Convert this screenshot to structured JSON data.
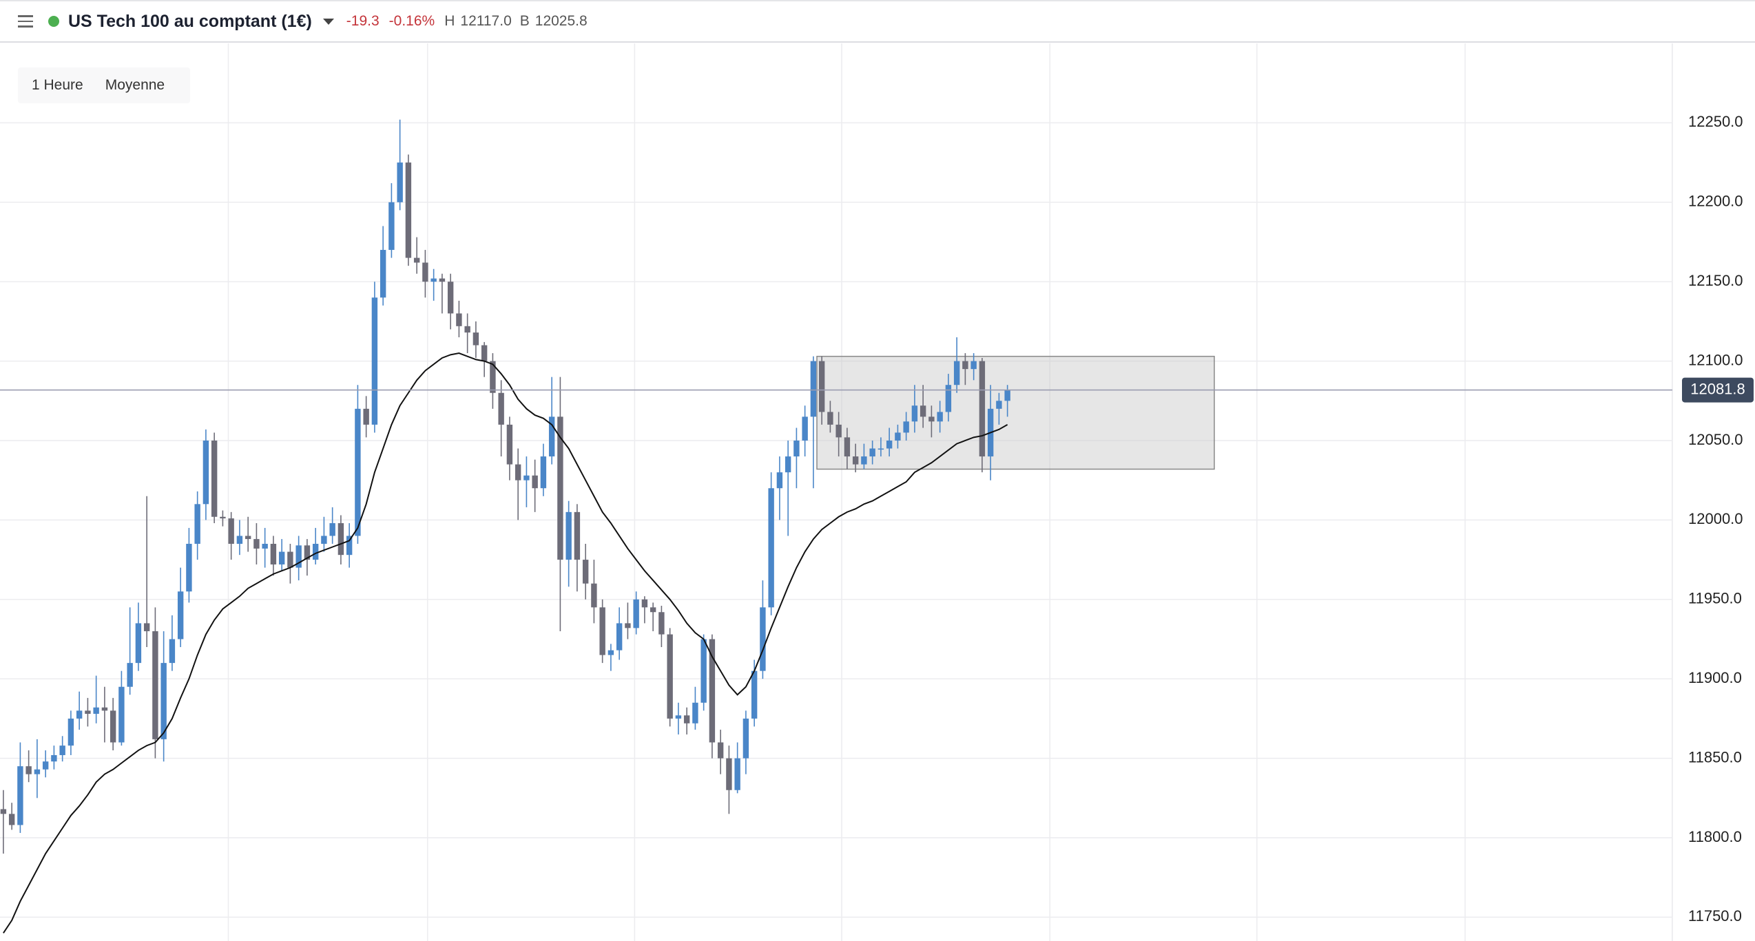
{
  "header": {
    "title": "US Tech 100 au comptant (1€)",
    "change": "-19.3",
    "change_pct": "-0.16%",
    "high_label": "H",
    "high": "12117.0",
    "bid_label": "B",
    "bid": "12025.8"
  },
  "toolbar": {
    "interval": "1 Heure",
    "indicator": "Moyenne"
  },
  "chart_data": {
    "type": "candlestick",
    "ohlc": [
      [
        11818,
        11830,
        11790,
        11815
      ],
      [
        11815,
        11822,
        11805,
        11808
      ],
      [
        11808,
        11860,
        11803,
        11845
      ],
      [
        11845,
        11855,
        11835,
        11840
      ],
      [
        11840,
        11862,
        11825,
        11843
      ],
      [
        11843,
        11855,
        11838,
        11848
      ],
      [
        11848,
        11858,
        11843,
        11852
      ],
      [
        11852,
        11864,
        11848,
        11858
      ],
      [
        11858,
        11880,
        11852,
        11875
      ],
      [
        11875,
        11892,
        11868,
        11880
      ],
      [
        11880,
        11888,
        11870,
        11878
      ],
      [
        11878,
        11902,
        11872,
        11882
      ],
      [
        11882,
        11895,
        11860,
        11880
      ],
      [
        11880,
        11888,
        11855,
        11860
      ],
      [
        11860,
        11905,
        11858,
        11895
      ],
      [
        11895,
        11945,
        11890,
        11910
      ],
      [
        11910,
        11948,
        11905,
        11935
      ],
      [
        11935,
        12015,
        11920,
        11930
      ],
      [
        11930,
        11945,
        11850,
        11862
      ],
      [
        11862,
        11930,
        11848,
        11910
      ],
      [
        11910,
        11940,
        11905,
        11925
      ],
      [
        11925,
        11970,
        11920,
        11955
      ],
      [
        11955,
        11995,
        11948,
        11985
      ],
      [
        11985,
        12018,
        11975,
        12010
      ],
      [
        12010,
        12057,
        12000,
        12050
      ],
      [
        12050,
        12055,
        11998,
        12002
      ],
      [
        12002,
        12006,
        11996,
        12001
      ],
      [
        12001,
        12005,
        11975,
        11985
      ],
      [
        11985,
        12000,
        11978,
        11990
      ],
      [
        11990,
        12002,
        11980,
        11988
      ],
      [
        11988,
        11998,
        11972,
        11982
      ],
      [
        11982,
        11995,
        11970,
        11985
      ],
      [
        11985,
        11990,
        11965,
        11972
      ],
      [
        11972,
        11988,
        11968,
        11980
      ],
      [
        11980,
        11985,
        11960,
        11970
      ],
      [
        11970,
        11990,
        11962,
        11984
      ],
      [
        11984,
        11988,
        11965,
        11975
      ],
      [
        11975,
        11995,
        11972,
        11985
      ],
      [
        11985,
        12002,
        11980,
        11990
      ],
      [
        11990,
        12008,
        11985,
        11998
      ],
      [
        11998,
        12003,
        11972,
        11978
      ],
      [
        11978,
        11998,
        11970,
        11990
      ],
      [
        11990,
        12085,
        11985,
        12070
      ],
      [
        12070,
        12078,
        12052,
        12060
      ],
      [
        12060,
        12150,
        12055,
        12140
      ],
      [
        12140,
        12185,
        12135,
        12170
      ],
      [
        12170,
        12212,
        12165,
        12200
      ],
      [
        12200,
        12252,
        12195,
        12225
      ],
      [
        12225,
        12230,
        12160,
        12165
      ],
      [
        12165,
        12178,
        12155,
        12162
      ],
      [
        12162,
        12170,
        12140,
        12150
      ],
      [
        12150,
        12158,
        12138,
        12152
      ],
      [
        12152,
        12155,
        12130,
        12150
      ],
      [
        12150,
        12155,
        12120,
        12130
      ],
      [
        12130,
        12138,
        12115,
        12122
      ],
      [
        12122,
        12130,
        12105,
        12118
      ],
      [
        12118,
        12125,
        12102,
        12110
      ],
      [
        12110,
        12112,
        12090,
        12100
      ],
      [
        12100,
        12105,
        12070,
        12080
      ],
      [
        12080,
        12088,
        12040,
        12060
      ],
      [
        12060,
        12065,
        12025,
        12035
      ],
      [
        12035,
        12045,
        12000,
        12025
      ],
      [
        12025,
        12040,
        12008,
        12028
      ],
      [
        12028,
        12038,
        12005,
        12020
      ],
      [
        12020,
        12048,
        12015,
        12040
      ],
      [
        12040,
        12090,
        12035,
        12065
      ],
      [
        12065,
        12090,
        11930,
        11975
      ],
      [
        11975,
        12012,
        11958,
        12005
      ],
      [
        12005,
        12010,
        11955,
        11975
      ],
      [
        11975,
        11985,
        11950,
        11960
      ],
      [
        11960,
        11975,
        11935,
        11945
      ],
      [
        11945,
        11950,
        11910,
        11915
      ],
      [
        11915,
        11922,
        11905,
        11918
      ],
      [
        11918,
        11945,
        11912,
        11935
      ],
      [
        11935,
        11948,
        11925,
        11932
      ],
      [
        11932,
        11955,
        11928,
        11950
      ],
      [
        11950,
        11952,
        11935,
        11945
      ],
      [
        11945,
        11948,
        11930,
        11942
      ],
      [
        11942,
        11946,
        11920,
        11928
      ],
      [
        11928,
        11932,
        11870,
        11875
      ],
      [
        11875,
        11885,
        11865,
        11877
      ],
      [
        11877,
        11882,
        11865,
        11872
      ],
      [
        11872,
        11895,
        11868,
        11885
      ],
      [
        11885,
        11928,
        11880,
        11925
      ],
      [
        11925,
        11928,
        11850,
        11860
      ],
      [
        11860,
        11868,
        11840,
        11850
      ],
      [
        11850,
        11858,
        11815,
        11830
      ],
      [
        11830,
        11860,
        11828,
        11850
      ],
      [
        11850,
        11880,
        11840,
        11875
      ],
      [
        11875,
        11912,
        11870,
        11905
      ],
      [
        11905,
        11962,
        11900,
        11945
      ],
      [
        11945,
        12030,
        11940,
        12020
      ],
      [
        12020,
        12040,
        12000,
        12030
      ],
      [
        12030,
        12050,
        11990,
        12040
      ],
      [
        12040,
        12058,
        12020,
        12050
      ],
      [
        12050,
        12072,
        12040,
        12065
      ],
      [
        12065,
        12103,
        12020,
        12100
      ],
      [
        12100,
        12103,
        12060,
        12068
      ],
      [
        12068,
        12075,
        12055,
        12060
      ],
      [
        12060,
        12068,
        12040,
        12052
      ],
      [
        12052,
        12058,
        12032,
        12040
      ],
      [
        12040,
        12048,
        12030,
        12035
      ],
      [
        12035,
        12048,
        12032,
        12040
      ],
      [
        12040,
        12050,
        12035,
        12045
      ],
      [
        12045,
        12052,
        12040,
        12045
      ],
      [
        12045,
        12058,
        12040,
        12050
      ],
      [
        12050,
        12060,
        12045,
        12055
      ],
      [
        12055,
        12068,
        12050,
        12062
      ],
      [
        12062,
        12085,
        12055,
        12072
      ],
      [
        12072,
        12085,
        12058,
        12065
      ],
      [
        12065,
        12072,
        12052,
        12062
      ],
      [
        12062,
        12075,
        12055,
        12068
      ],
      [
        12068,
        12092,
        12062,
        12085
      ],
      [
        12085,
        12115,
        12080,
        12100
      ],
      [
        12100,
        12105,
        12085,
        12095
      ],
      [
        12095,
        12105,
        12088,
        12100
      ],
      [
        12100,
        12102,
        12030,
        12040
      ],
      [
        12040,
        12085,
        12025,
        12070
      ],
      [
        12070,
        12080,
        12060,
        12075
      ],
      [
        12075,
        12085,
        12065,
        12081.8
      ]
    ],
    "colors": {
      "up": "#4a86c8",
      "down": "#6d6c78"
    },
    "moving_average": {
      "color": "#111111",
      "values": [
        11740,
        11748,
        11760,
        11770,
        11780,
        11790,
        11798,
        11806,
        11814,
        11820,
        11827,
        11835,
        11840,
        11843,
        11847,
        11851,
        11855,
        11858,
        11860,
        11866,
        11875,
        11888,
        11900,
        11915,
        11928,
        11937,
        11944,
        11948,
        11952,
        11957,
        11960,
        11963,
        11966,
        11968,
        11970,
        11973,
        11976,
        11979,
        11981,
        11983,
        11985,
        11987,
        11995,
        12010,
        12030,
        12045,
        12060,
        12072,
        12080,
        12088,
        12094,
        12098,
        12102,
        12104,
        12105,
        12103,
        12101,
        12100,
        12098,
        12092,
        12085,
        12076,
        12070,
        12066,
        12064,
        12060,
        12052,
        12045,
        12035,
        12025,
        12015,
        12005,
        11998,
        11990,
        11982,
        11975,
        11968,
        11962,
        11956,
        11950,
        11943,
        11935,
        11929,
        11925,
        11914,
        11905,
        11896,
        11890,
        11895,
        11905,
        11918,
        11932,
        11945,
        11958,
        11970,
        11980,
        11988,
        11994,
        11998,
        12002,
        12005,
        12007,
        12010,
        12012,
        12015,
        12018,
        12021,
        12024,
        12030,
        12033,
        12036,
        12040,
        12044,
        12048,
        12050,
        12052,
        12053,
        12055,
        12057,
        12060
      ]
    },
    "ylim": [
      11735,
      12300
    ],
    "yticks": [
      {
        "value": 11750,
        "label": "11750.0"
      },
      {
        "value": 11800,
        "label": "11800.0"
      },
      {
        "value": 11850,
        "label": "11850.0"
      },
      {
        "value": 11900,
        "label": "11900.0"
      },
      {
        "value": 11950,
        "label": "11950.0"
      },
      {
        "value": 12000,
        "label": "12000.0"
      },
      {
        "value": 12050,
        "label": "12050.0"
      },
      {
        "value": 12100,
        "label": "12100.0"
      },
      {
        "value": 12150,
        "label": "12150.0"
      },
      {
        "value": 12200,
        "label": "12200.0"
      },
      {
        "value": 12250,
        "label": "12250.0"
      }
    ],
    "last_price": 12081.8,
    "zone": {
      "top": 12103,
      "bottom": 12032
    },
    "grid": true
  }
}
